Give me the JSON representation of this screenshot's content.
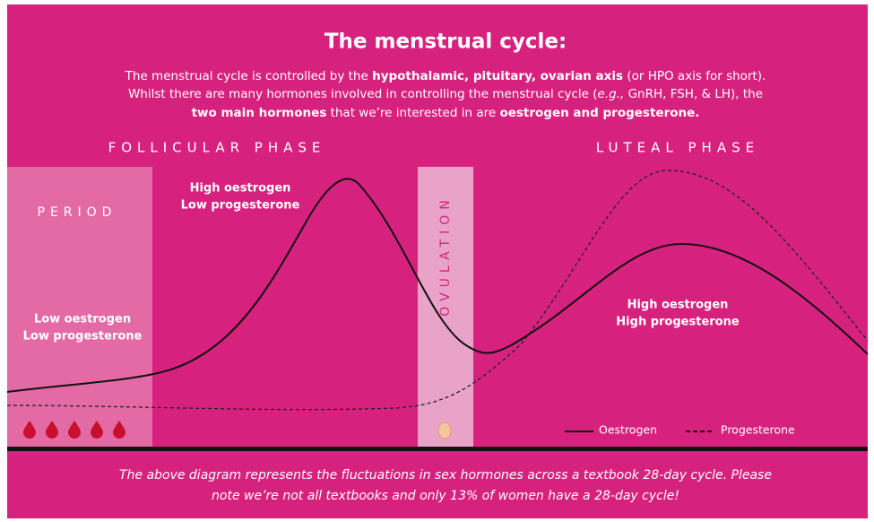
{
  "title": "The menstrual cycle:",
  "intro": [
    [
      {
        "text": "The menstrual cycle is controlled by the "
      },
      {
        "text": "hypothalamic, pituitary, ovarian axis",
        "bold": true
      },
      {
        "text": " (or HPO axis for short)."
      }
    ],
    [
      {
        "text": "Whilst there are many hormones involved in controlling the menstrual cycle ("
      },
      {
        "text": "e.g.,",
        "italic": true
      },
      {
        "text": " GnRH, FSH, & LH), the"
      }
    ],
    [
      {
        "text": "two main hormones",
        "bold": true
      },
      {
        "text": " that we’re interested in are "
      },
      {
        "text": "oestrogen and progesterone.",
        "bold": true
      }
    ]
  ],
  "phases": {
    "follicular": "FOLLICULAR PHASE",
    "luteal": "LUTEAL PHASE",
    "period": "PERIOD",
    "ovulation": "OVULATION"
  },
  "labels": {
    "follicular": [
      "High oestrogen",
      "Low progesterone"
    ],
    "period": [
      "Low oestrogen",
      "Low progesterone"
    ],
    "luteal": [
      "High oestrogen",
      "High progesterone"
    ]
  },
  "legend": {
    "oestrogen": "Oestrogen",
    "progesterone": "Progesterone"
  },
  "footer": [
    "The above diagram represents the fluctuations in sex hormones across a textbook 28-day cycle. Please",
    "note we’re not all textbooks and only 13% of women have a 28-day cycle!"
  ]
}
